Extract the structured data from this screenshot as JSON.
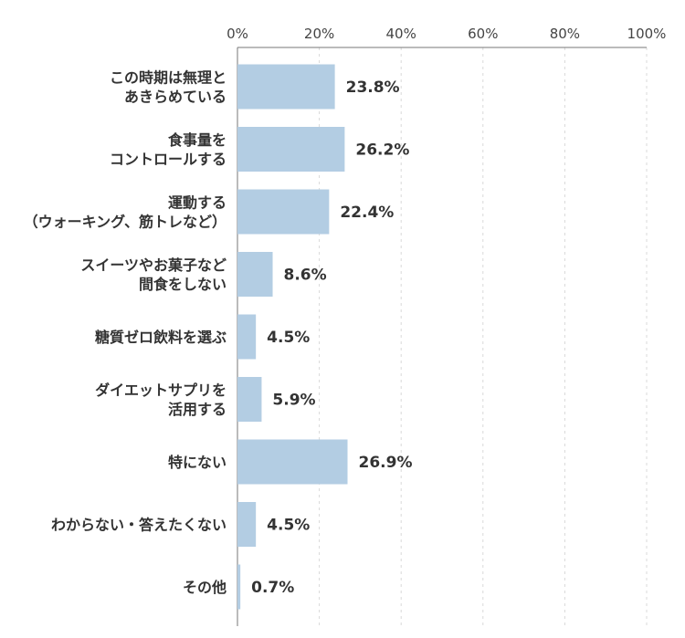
{
  "chart_data": {
    "type": "bar",
    "orientation": "horizontal",
    "categories": [
      [
        "この時期は無理と",
        "あきらめている"
      ],
      [
        "食事量を",
        "コントロールする"
      ],
      [
        "運動する",
        "（ウォーキング、筋トレなど）"
      ],
      [
        "スイーツやお菓子など",
        "間食をしない"
      ],
      [
        "糖質ゼロ飲料を選ぶ"
      ],
      [
        "ダイエットサプリを",
        "活用する"
      ],
      [
        "特にない"
      ],
      [
        "わからない・答えたくない"
      ],
      [
        "その他"
      ]
    ],
    "values": [
      23.8,
      26.2,
      22.4,
      8.6,
      4.5,
      5.9,
      26.9,
      4.5,
      0.7
    ],
    "value_labels": [
      "23.8%",
      "26.2%",
      "22.4%",
      "8.6%",
      "4.5%",
      "5.9%",
      "26.9%",
      "4.5%",
      "0.7%"
    ],
    "x_ticks": [
      "0%",
      "20%",
      "40%",
      "60%",
      "80%",
      "100%"
    ],
    "xlim": [
      0,
      100
    ],
    "grid": true,
    "bar_color": "#b3cde3",
    "title": "",
    "xlabel": "",
    "ylabel": ""
  }
}
